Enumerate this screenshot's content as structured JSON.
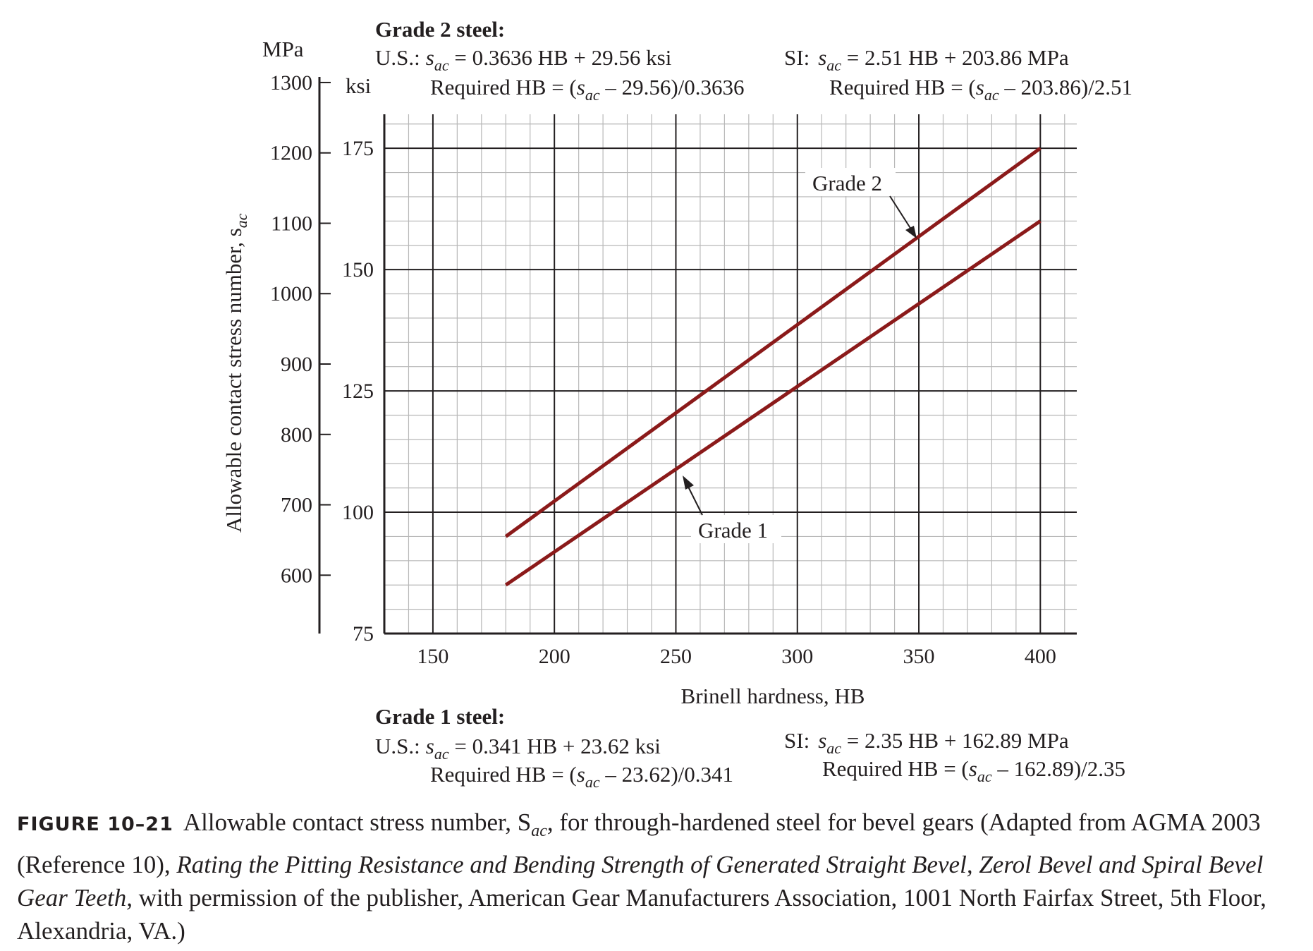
{
  "top_block": {
    "heading": "Grade 2 steel:",
    "us_prefix": "U.S.:",
    "us_formula_tail": " = 0.3636 HB + 29.56 ksi",
    "us_required_head": "Required HB = (",
    "us_required_tail": " – 29.56)/0.3636",
    "si_prefix": "SI:",
    "si_formula_tail": " = 2.51 HB + 203.86 MPa",
    "si_required_head": "Required HB = (",
    "si_required_tail": " – 203.86)/2.51"
  },
  "bottom_block": {
    "heading": "Grade 1 steel:",
    "us_prefix": "U.S.:",
    "us_formula_tail": " = 0.341 HB + 23.62 ksi",
    "us_required_head": "Required HB = (",
    "us_required_tail": " – 23.62)/0.341",
    "si_prefix": "SI:",
    "si_formula_tail": " = 2.35 HB + 162.89 MPa",
    "si_required_head": "Required HB = (",
    "si_required_tail": " – 162.89)/2.35"
  },
  "symbol": {
    "s": "s",
    "sub": "ac"
  },
  "chart_data": {
    "type": "line",
    "xlabel": "Brinell hardness, HB",
    "ylabel": "Allowable contact stress number, s",
    "ylabel_sub": "ac",
    "ksi_unit": "ksi",
    "mpa_unit": "MPa",
    "x_ticks": [
      150,
      200,
      250,
      300,
      350,
      400
    ],
    "ksi_ticks": [
      75,
      100,
      125,
      150,
      175
    ],
    "mpa_ticks": [
      600,
      700,
      800,
      900,
      1000,
      1100,
      1200,
      1300
    ],
    "xlim": [
      130,
      415
    ],
    "ylim_ksi": [
      75,
      182
    ],
    "series": [
      {
        "name": "Grade 1",
        "x": [
          180,
          400
        ],
        "y_ksi": [
          85.0,
          160.0
        ]
      },
      {
        "name": "Grade 2",
        "x": [
          180,
          400
        ],
        "y_ksi": [
          95.0,
          175.0
        ]
      }
    ],
    "line_color": "#8b1a1a",
    "grid": true
  },
  "caption": {
    "label": "FIGURE 10–21",
    "text_1": "Allowable contact stress number, S",
    "text_sub": "ac",
    "text_2": ", for through-hardened steel for bevel gears (Adapted from AGMA 2003 (Reference 10), ",
    "italic_title": "Rating the Pitting Resistance and Bending Strength of Generated Straight Bevel, Zerol Bevel and Spiral Bevel Gear Teeth,",
    "text_3": " with permission of the publisher, American Gear Manufacturers Association, 1001 North Fairfax Street, 5th Floor, Alexandria, VA.)"
  }
}
